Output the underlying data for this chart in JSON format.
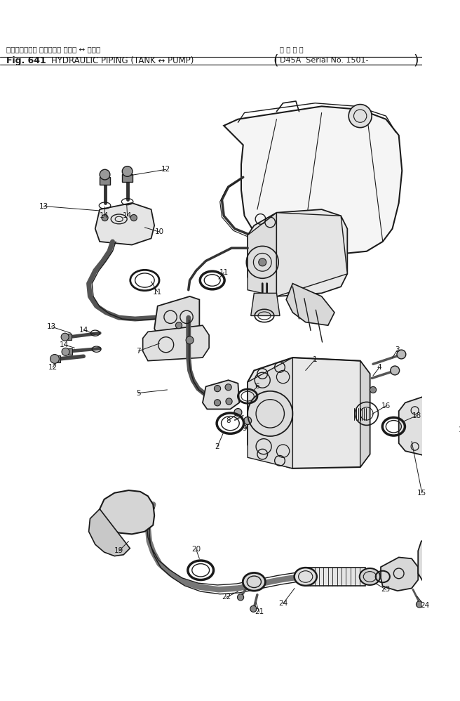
{
  "bg_color": "#ffffff",
  "line_color": "#1a1a1a",
  "header": {
    "fig_label": "Fig. 641",
    "title_jp": "ハイドロリック パイピング タンク ↔ ポンプ",
    "title_en": "HYDRAULIC PIPING (TANK ↔ PUMP)",
    "serial_jp": "適 用 号 機",
    "serial_en": "D45A  Serial No. 1501-"
  },
  "fig_width": 6.56,
  "fig_height": 9.98,
  "dpi": 100
}
